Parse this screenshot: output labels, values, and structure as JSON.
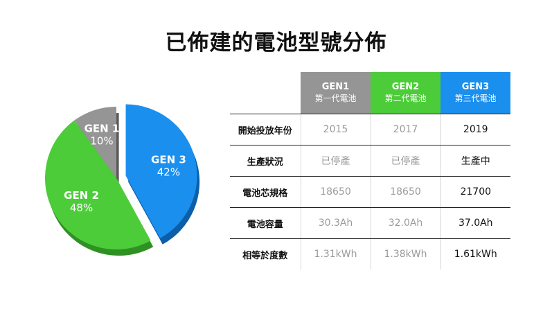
{
  "title": "已佈建的電池型號分佈",
  "colors": {
    "gen1": "#959595",
    "gen2": "#4dcc3a",
    "gen3": "#1a8fee",
    "gen1_dark": "#5a5a5a",
    "gen2_dark": "#2f9124",
    "gen3_dark": "#0b5fa8"
  },
  "chart_data": {
    "type": "pie",
    "slices": [
      {
        "label": "GEN 3",
        "value": 42,
        "value_label": "42%"
      },
      {
        "label": "GEN 2",
        "value": 48,
        "value_label": "48%"
      },
      {
        "label": "GEN 1",
        "value": 10,
        "value_label": "10%"
      }
    ]
  },
  "table": {
    "headers": [
      {
        "name": "GEN1",
        "sub": "第一代電池"
      },
      {
        "name": "GEN2",
        "sub": "第二代電池"
      },
      {
        "name": "GEN3",
        "sub": "第三代電池"
      }
    ],
    "rows": [
      {
        "label": "開始投放年份",
        "values": [
          "2015",
          "2017",
          "2019"
        ]
      },
      {
        "label": "生產狀況",
        "values": [
          "已停產",
          "已停產",
          "生產中"
        ]
      },
      {
        "label": "電池芯規格",
        "values": [
          "18650",
          "18650",
          "21700"
        ]
      },
      {
        "label": "電池容量",
        "values": [
          "30.3Ah",
          "32.0Ah",
          "37.0Ah"
        ]
      },
      {
        "label": "相等於度數",
        "values": [
          "1.31kWh",
          "1.38kWh",
          "1.61kWh"
        ]
      }
    ]
  }
}
